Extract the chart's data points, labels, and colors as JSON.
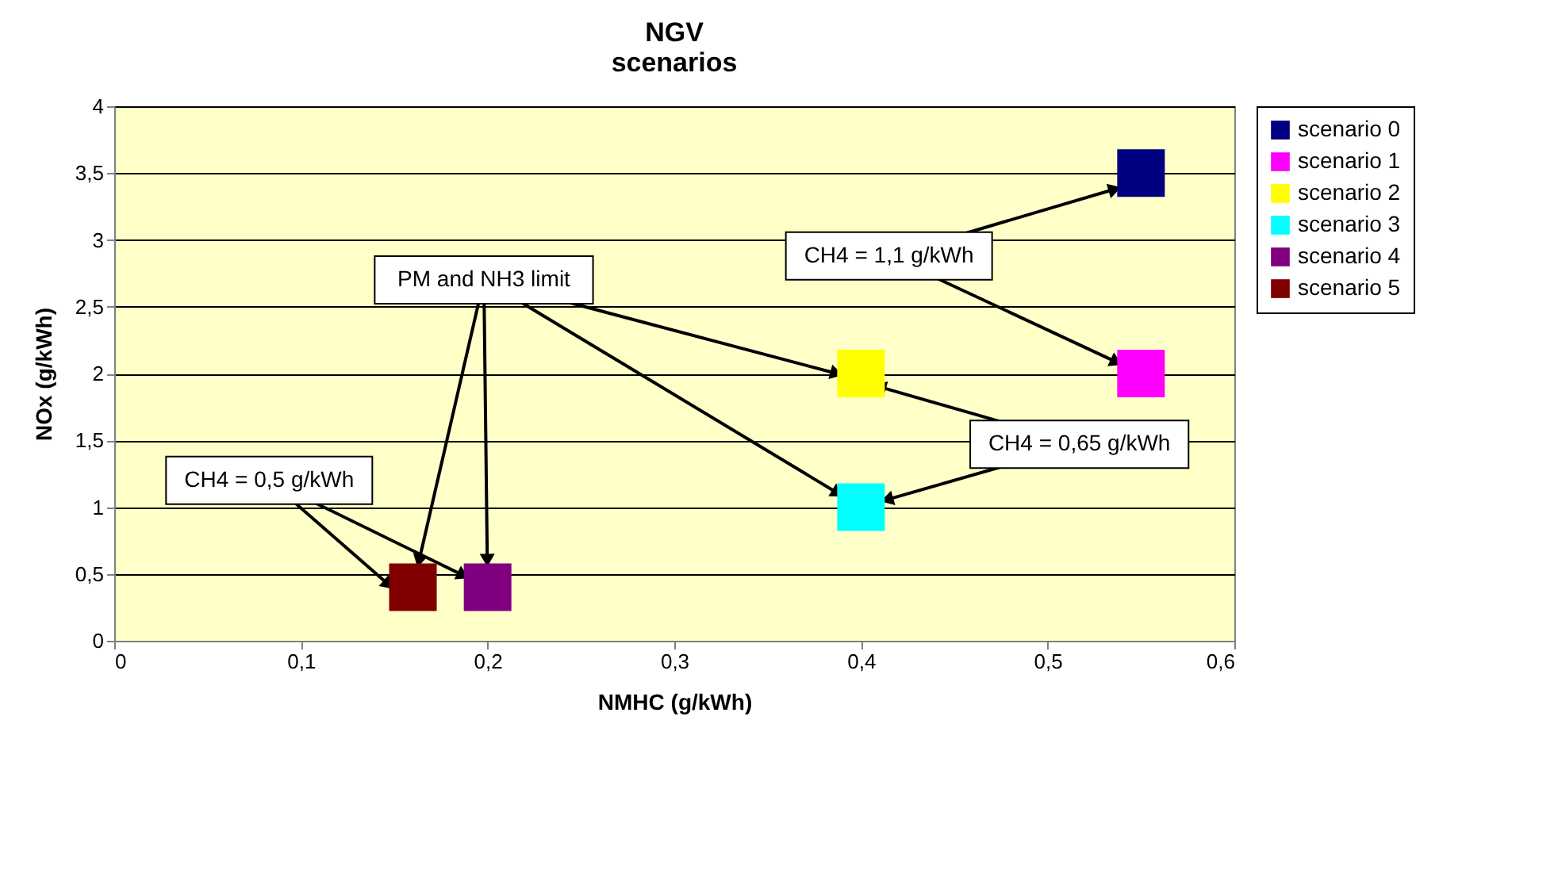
{
  "chart_data": {
    "type": "scatter",
    "title": "NGV\nscenarios",
    "xlabel": "NMHC (g/kWh)",
    "ylabel": "NOx (g/kWh)",
    "xlim": [
      0,
      0.6
    ],
    "xticks": [
      0,
      {
        "value": 0.1,
        "label": "0,1"
      },
      {
        "value": 0.2,
        "label": "0,2"
      },
      {
        "value": 0.3,
        "label": "0,3"
      },
      {
        "value": 0.4,
        "label": "0,4"
      },
      {
        "value": 0.5,
        "label": "0,5"
      },
      {
        "value": 0.6,
        "label": "0,6"
      }
    ],
    "ylim": [
      0,
      4
    ],
    "yticks": [
      0,
      {
        "value": 0.5,
        "label": "0,5"
      },
      1,
      {
        "value": 1.5,
        "label": "1,5"
      },
      2,
      {
        "value": 2.5,
        "label": "2,5"
      },
      3,
      {
        "value": 3.5,
        "label": "3,5"
      },
      4
    ],
    "grid": "y",
    "legend": "right",
    "marker": "square",
    "series": [
      {
        "name": "scenario 0",
        "color": "#000080",
        "x": [
          0.55
        ],
        "values": [
          3.5
        ]
      },
      {
        "name": "scenario 1",
        "color": "#ff00ff",
        "x": [
          0.55
        ],
        "values": [
          2
        ]
      },
      {
        "name": "scenario 2",
        "color": "#ffff00",
        "x": [
          0.4
        ],
        "values": [
          2
        ]
      },
      {
        "name": "scenario 3",
        "color": "#00ffff",
        "x": [
          0.4
        ],
        "values": [
          1
        ]
      },
      {
        "name": "scenario 4",
        "color": "#800080",
        "x": [
          0.2
        ],
        "values": [
          0.4
        ]
      },
      {
        "name": "scenario 5",
        "color": "#800000",
        "x": [
          0.16
        ],
        "values": [
          0.4
        ]
      }
    ],
    "annotations": [
      {
        "text": "CH4 = 1,1 g/kWh",
        "x": 0.536,
        "y": 3.38
      },
      {
        "text": "PM and NH3 limit",
        "x": 0.387,
        "y": 2
      },
      {
        "text": "CH4 = 0,65 g/kWh",
        "x": 0.41,
        "y": 1.9
      },
      {
        "text": "CH4 = 0,5 g/kWh",
        "x": 0.147,
        "y": 0.42
      }
    ]
  }
}
